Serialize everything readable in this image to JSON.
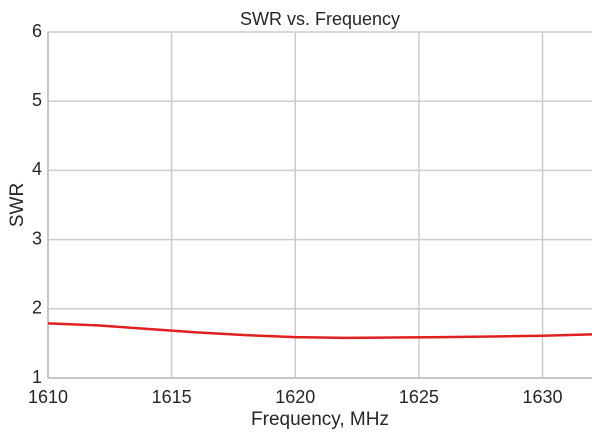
{
  "chart_data": {
    "type": "line",
    "title": "SWR vs. Frequency",
    "x_label": "Frequency, MHz",
    "y_label": "SWR",
    "x": [
      1610,
      1612,
      1614,
      1616,
      1618,
      1620,
      1622,
      1624,
      1626,
      1628,
      1630,
      1632
    ],
    "series": [
      {
        "name": "SWR",
        "color": "#e02020",
        "values": [
          1.79,
          1.76,
          1.71,
          1.66,
          1.62,
          1.59,
          1.58,
          1.585,
          1.59,
          1.6,
          1.61,
          1.63
        ]
      }
    ],
    "xlim": [
      1610,
      1632
    ],
    "xticks": [
      1610,
      1615,
      1620,
      1625,
      1630
    ],
    "ylim": [
      1,
      6
    ],
    "yticks": [
      1,
      2,
      3,
      4,
      5,
      6
    ],
    "grid": true
  }
}
